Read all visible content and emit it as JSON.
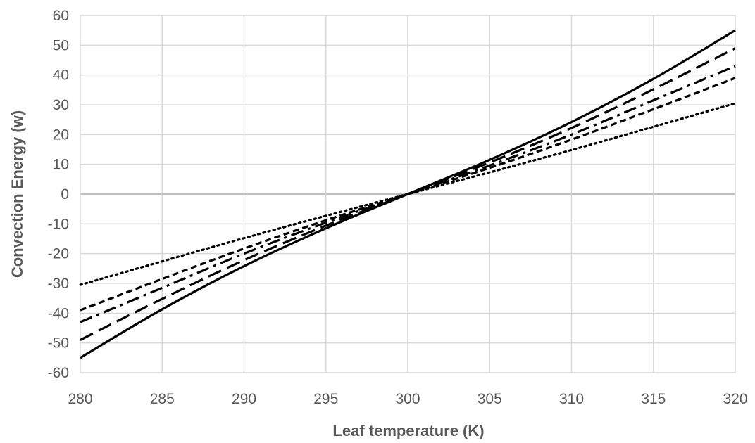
{
  "chart_data": {
    "type": "line",
    "title": "",
    "xlabel": "Leaf temperature (K)",
    "ylabel": "Convection Energy (w)",
    "xlim": [
      280,
      320
    ],
    "ylim": [
      -60,
      60
    ],
    "x_ticks": [
      280,
      285,
      290,
      295,
      300,
      305,
      310,
      315,
      320
    ],
    "y_ticks": [
      -60,
      -50,
      -40,
      -30,
      -20,
      -10,
      0,
      10,
      20,
      30,
      40,
      50,
      60
    ],
    "grid": true,
    "legend": "none",
    "x": [
      280,
      285,
      290,
      295,
      300,
      305,
      310,
      315,
      320
    ],
    "series": [
      {
        "style": "solid",
        "values": [
          -55,
          -38.7,
          -24.2,
          -11.5,
          0,
          11.5,
          24.2,
          38.7,
          55
        ]
      },
      {
        "style": "dashed",
        "values": [
          -49,
          -35.2,
          -22.2,
          -10.6,
          0,
          10.6,
          22.2,
          35.2,
          49
        ]
      },
      {
        "style": "dash-dot",
        "values": [
          -43,
          -31.5,
          -20.0,
          -9.6,
          0,
          9.6,
          20.0,
          31.5,
          43
        ]
      },
      {
        "style": "short-dash",
        "values": [
          -39,
          -28.5,
          -18.3,
          -8.8,
          0,
          8.8,
          18.3,
          28.5,
          39
        ]
      },
      {
        "style": "dotted",
        "values": [
          -30.5,
          -22.6,
          -14.8,
          -7.3,
          0,
          7.3,
          14.8,
          22.6,
          30.5
        ]
      }
    ],
    "colors": {
      "line": "#000000",
      "grid": "#d9d9d9",
      "text": "#595959"
    }
  }
}
